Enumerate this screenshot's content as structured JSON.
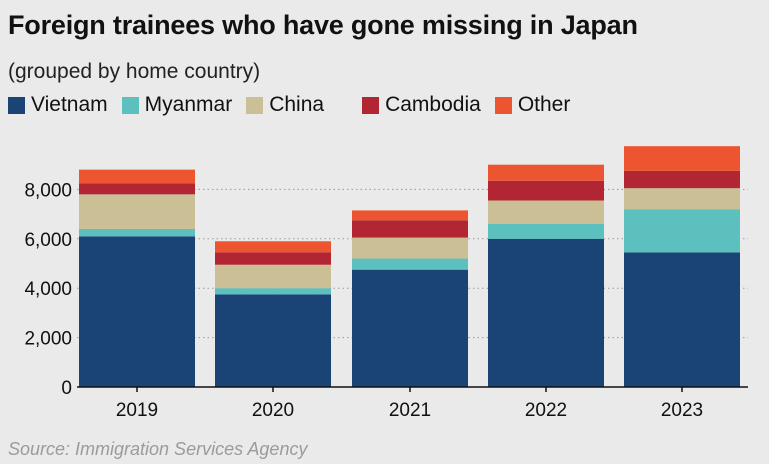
{
  "title": "Foreign trainees who have gone missing in Japan",
  "subtitle": "(grouped by home country)",
  "source": "Source: Immigration Services Agency",
  "chart_data": {
    "type": "bar",
    "stacked": true,
    "title": "Foreign trainees who have gone missing in Japan",
    "subtitle": "(grouped by home country)",
    "categories": [
      "2019",
      "2020",
      "2021",
      "2022",
      "2023"
    ],
    "series": [
      {
        "name": "Vietnam",
        "color": "#1a4476",
        "values": [
          6100,
          3750,
          4750,
          6000,
          5450
        ]
      },
      {
        "name": "Myanmar",
        "color": "#5bc0be",
        "values": [
          300,
          250,
          450,
          600,
          1750
        ]
      },
      {
        "name": "China",
        "color": "#cbbf96",
        "values": [
          1400,
          950,
          850,
          950,
          850
        ]
      },
      {
        "name": "Cambodia",
        "color": "#b22533",
        "values": [
          450,
          500,
          700,
          800,
          700
        ]
      },
      {
        "name": "Other",
        "color": "#ec5530",
        "values": [
          550,
          450,
          400,
          650,
          1000
        ]
      }
    ],
    "ylim": [
      0,
      10000
    ],
    "yticks": [
      0,
      2000,
      4000,
      6000,
      8000
    ],
    "ytick_labels": [
      "0",
      "2,000",
      "4,000",
      "6,000",
      "8,000"
    ],
    "grid": "horizontal dotted",
    "legend_position": "top-left",
    "xlabel": "",
    "ylabel": ""
  }
}
